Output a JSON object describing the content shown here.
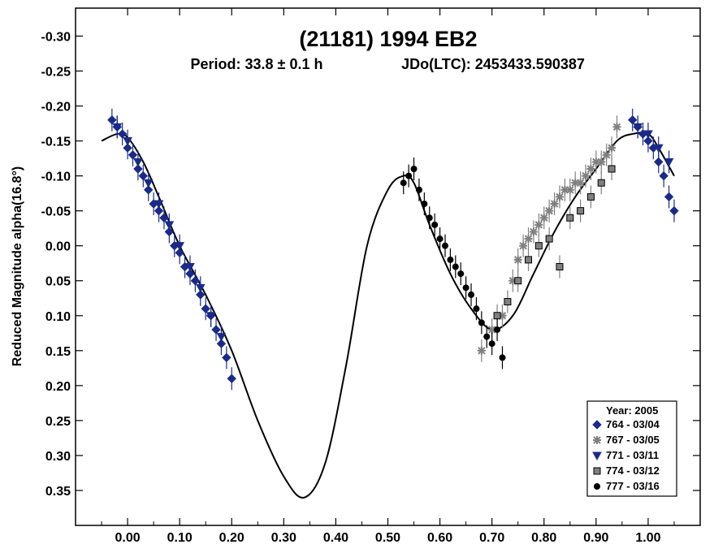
{
  "chart_data": {
    "type": "scatter",
    "title": "(21181) 1994 EB2",
    "subtitle_period": "Period: 33.8 ± 0.1 h",
    "subtitle_epoch": "JDo(LTC): 2453433.590387",
    "xlabel": "",
    "ylabel": "Reduced Magnitude alpha(16.8°)",
    "xlim": [
      -0.1,
      1.1
    ],
    "ylim": [
      -0.34,
      0.4
    ],
    "y_inverted": true,
    "x_ticks": [
      "0.00",
      "0.10",
      "0.20",
      "0.30",
      "0.40",
      "0.50",
      "0.60",
      "0.70",
      "0.80",
      "0.90",
      "1.00"
    ],
    "x_tick_values": [
      0,
      0.1,
      0.2,
      0.3,
      0.4,
      0.5,
      0.6,
      0.7,
      0.8,
      0.9,
      1.0
    ],
    "y_ticks": [
      "-0.30",
      "-0.25",
      "-0.20",
      "-0.15",
      "-0.10",
      "-0.05",
      "0.00",
      "0.05",
      "0.10",
      "0.15",
      "0.20",
      "0.25",
      "0.30",
      "0.35"
    ],
    "y_tick_values": [
      -0.3,
      -0.25,
      -0.2,
      -0.15,
      -0.1,
      -0.05,
      0.0,
      0.05,
      0.1,
      0.15,
      0.2,
      0.25,
      0.3,
      0.35
    ],
    "grid": false,
    "legend_position": "bottom-right",
    "legend_title": "Year: 2005",
    "fit_curve": {
      "x": [
        -0.05,
        -0.02,
        0.0,
        0.03,
        0.06,
        0.1,
        0.15,
        0.2,
        0.25,
        0.3,
        0.34,
        0.38,
        0.42,
        0.46,
        0.5,
        0.53,
        0.55,
        0.58,
        0.62,
        0.66,
        0.7,
        0.74,
        0.78,
        0.82,
        0.86,
        0.9,
        0.94,
        0.97,
        1.0,
        1.02,
        1.05
      ],
      "y": [
        -0.15,
        -0.16,
        -0.155,
        -0.12,
        -0.07,
        0.0,
        0.07,
        0.15,
        0.25,
        0.33,
        0.36,
        0.31,
        0.17,
        0.0,
        -0.08,
        -0.1,
        -0.09,
        -0.03,
        0.04,
        0.09,
        0.12,
        0.1,
        0.04,
        -0.02,
        -0.07,
        -0.11,
        -0.15,
        -0.16,
        -0.16,
        -0.14,
        -0.1
      ]
    },
    "series": [
      {
        "name": "764 - 03/04",
        "marker": "diamond",
        "color": "#1a2a8a",
        "x": [
          -0.03,
          -0.02,
          -0.01,
          0.0,
          0.01,
          0.02,
          0.03,
          0.04,
          0.05,
          0.06,
          0.07,
          0.08,
          0.09,
          0.1,
          0.11,
          0.12,
          0.13,
          0.14,
          0.15,
          0.16,
          0.17,
          0.18,
          0.19,
          0.2,
          0.97,
          0.98,
          0.99,
          1.0,
          1.01,
          1.02,
          1.03,
          1.04,
          1.05
        ],
        "y": [
          -0.18,
          -0.17,
          -0.16,
          -0.14,
          -0.13,
          -0.11,
          -0.1,
          -0.08,
          -0.06,
          -0.05,
          -0.04,
          -0.02,
          0.0,
          0.01,
          0.03,
          0.04,
          0.05,
          0.07,
          0.09,
          0.1,
          0.12,
          0.14,
          0.16,
          0.19,
          -0.18,
          -0.17,
          -0.16,
          -0.15,
          -0.14,
          -0.12,
          -0.1,
          -0.07,
          -0.05
        ]
      },
      {
        "name": "767 - 03/05",
        "marker": "asterisk",
        "color": "#808080",
        "x": [
          0.68,
          0.7,
          0.72,
          0.74,
          0.75,
          0.76,
          0.77,
          0.78,
          0.79,
          0.8,
          0.81,
          0.82,
          0.83,
          0.84,
          0.85,
          0.86,
          0.87,
          0.88,
          0.89,
          0.9,
          0.91,
          0.92,
          0.93,
          0.94
        ],
        "y": [
          0.15,
          0.12,
          0.1,
          0.05,
          0.02,
          0.0,
          -0.01,
          -0.02,
          -0.03,
          -0.04,
          -0.05,
          -0.06,
          -0.07,
          -0.08,
          -0.08,
          -0.09,
          -0.09,
          -0.1,
          -0.11,
          -0.12,
          -0.12,
          -0.13,
          -0.14,
          -0.17
        ]
      },
      {
        "name": "771 - 03/11",
        "marker": "triangle-down",
        "color": "#1a2a8a",
        "x": [
          -0.02,
          0.0,
          0.02,
          0.04,
          0.06,
          0.08,
          0.1,
          0.12,
          0.14,
          0.16,
          0.18,
          0.98,
          1.0,
          1.02,
          1.04
        ],
        "y": [
          -0.17,
          -0.15,
          -0.12,
          -0.09,
          -0.06,
          -0.03,
          0.0,
          0.03,
          0.06,
          0.1,
          0.13,
          -0.17,
          -0.16,
          -0.14,
          -0.12
        ]
      },
      {
        "name": "774 - 03/12",
        "marker": "square",
        "color": "#808080",
        "x": [
          0.71,
          0.73,
          0.75,
          0.77,
          0.79,
          0.81,
          0.83,
          0.85,
          0.87,
          0.89,
          0.91,
          0.93
        ],
        "y": [
          0.1,
          0.08,
          0.05,
          0.02,
          0.0,
          -0.01,
          0.03,
          -0.04,
          -0.05,
          -0.07,
          -0.09,
          -0.11
        ]
      },
      {
        "name": "777 - 03/16",
        "marker": "circle",
        "color": "#000000",
        "x": [
          0.53,
          0.54,
          0.55,
          0.56,
          0.57,
          0.58,
          0.59,
          0.6,
          0.61,
          0.62,
          0.63,
          0.64,
          0.65,
          0.66,
          0.67,
          0.68,
          0.69,
          0.7,
          0.71,
          0.72
        ],
        "y": [
          -0.09,
          -0.1,
          -0.11,
          -0.08,
          -0.06,
          -0.04,
          -0.03,
          -0.01,
          0.0,
          0.02,
          0.03,
          0.04,
          0.06,
          0.07,
          0.09,
          0.11,
          0.13,
          0.14,
          0.12,
          0.16
        ]
      }
    ]
  }
}
